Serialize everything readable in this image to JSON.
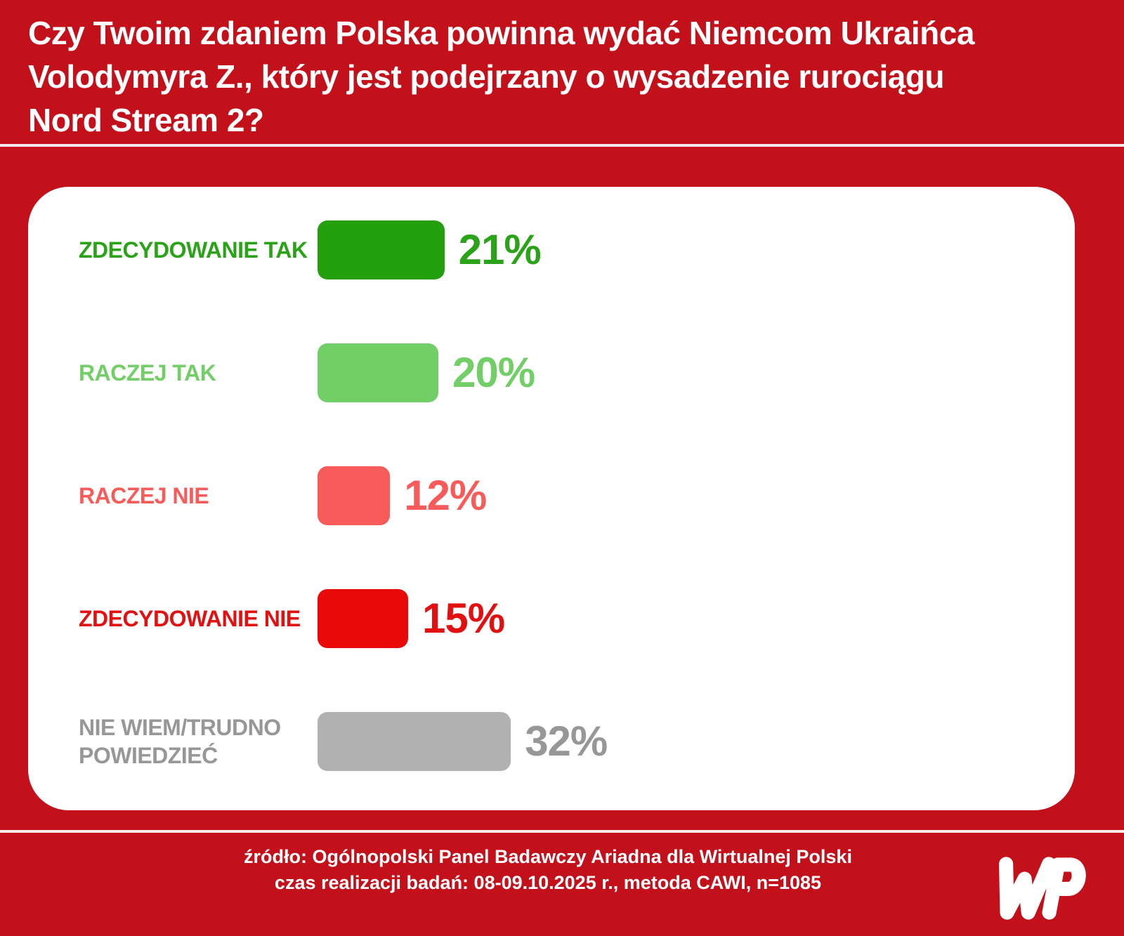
{
  "header": {
    "title": "Czy Twoim zdaniem Polska powinna wydać Niemcom Ukraińca\nVolodymyra Z., który jest podejrzany o wysadzenie rurociągu\nNord Stream 2?"
  },
  "chart_data": {
    "type": "bar",
    "orientation": "horizontal",
    "title": "Czy Twoim zdaniem Polska powinna wydać Niemcom Ukraińca Volodymyra Z., który jest podejrzany o wysadzenie rurociągu Nord Stream 2?",
    "unit": "%",
    "categories": [
      "ZDECYDOWANIE TAK",
      "RACZEJ TAK",
      "RACZEJ NIE",
      "ZDECYDOWANIE NIE",
      "NIE WIEM/TRUDNO POWIEDZIEĆ"
    ],
    "values": [
      21,
      20,
      12,
      15,
      32
    ],
    "xlim": [
      0,
      100
    ],
    "grid": false,
    "legend": false,
    "rows": [
      {
        "label": "ZDECYDOWANIE TAK",
        "value": 21,
        "value_label": "21%",
        "bar_color": "#23A00C",
        "text_color": "#2BA319"
      },
      {
        "label": "RACZEJ TAK",
        "value": 20,
        "value_label": "20%",
        "bar_color": "#72CE66",
        "text_color": "#72CE66"
      },
      {
        "label": "RACZEJ NIE",
        "value": 12,
        "value_label": "12%",
        "bar_color": "#F75C5B",
        "text_color": "#F75C5B"
      },
      {
        "label": "ZDECYDOWANIE NIE",
        "value": 15,
        "value_label": "15%",
        "bar_color": "#E90909",
        "text_color": "#E21010"
      },
      {
        "label": "NIE WIEM/TRUDNO POWIEDZIEĆ",
        "value": 32,
        "value_label": "32%",
        "bar_color": "#B1B1B1",
        "text_color": "#97979A"
      }
    ]
  },
  "footer": {
    "source": "źródło: Ogólnopolski Panel Badawczy Ariadna dla Wirtualnej Polski\nczas realizacji badań: 08-09.10.2025 r., metoda CAWI, n=1085",
    "logo_name": "wp-wirtualna-polska-logo"
  },
  "colors": {
    "background_red": "#C3111C",
    "card_white": "#FFFFFF",
    "title_white": "#FFFFFF",
    "divider_pink": "#F8EAEC"
  }
}
